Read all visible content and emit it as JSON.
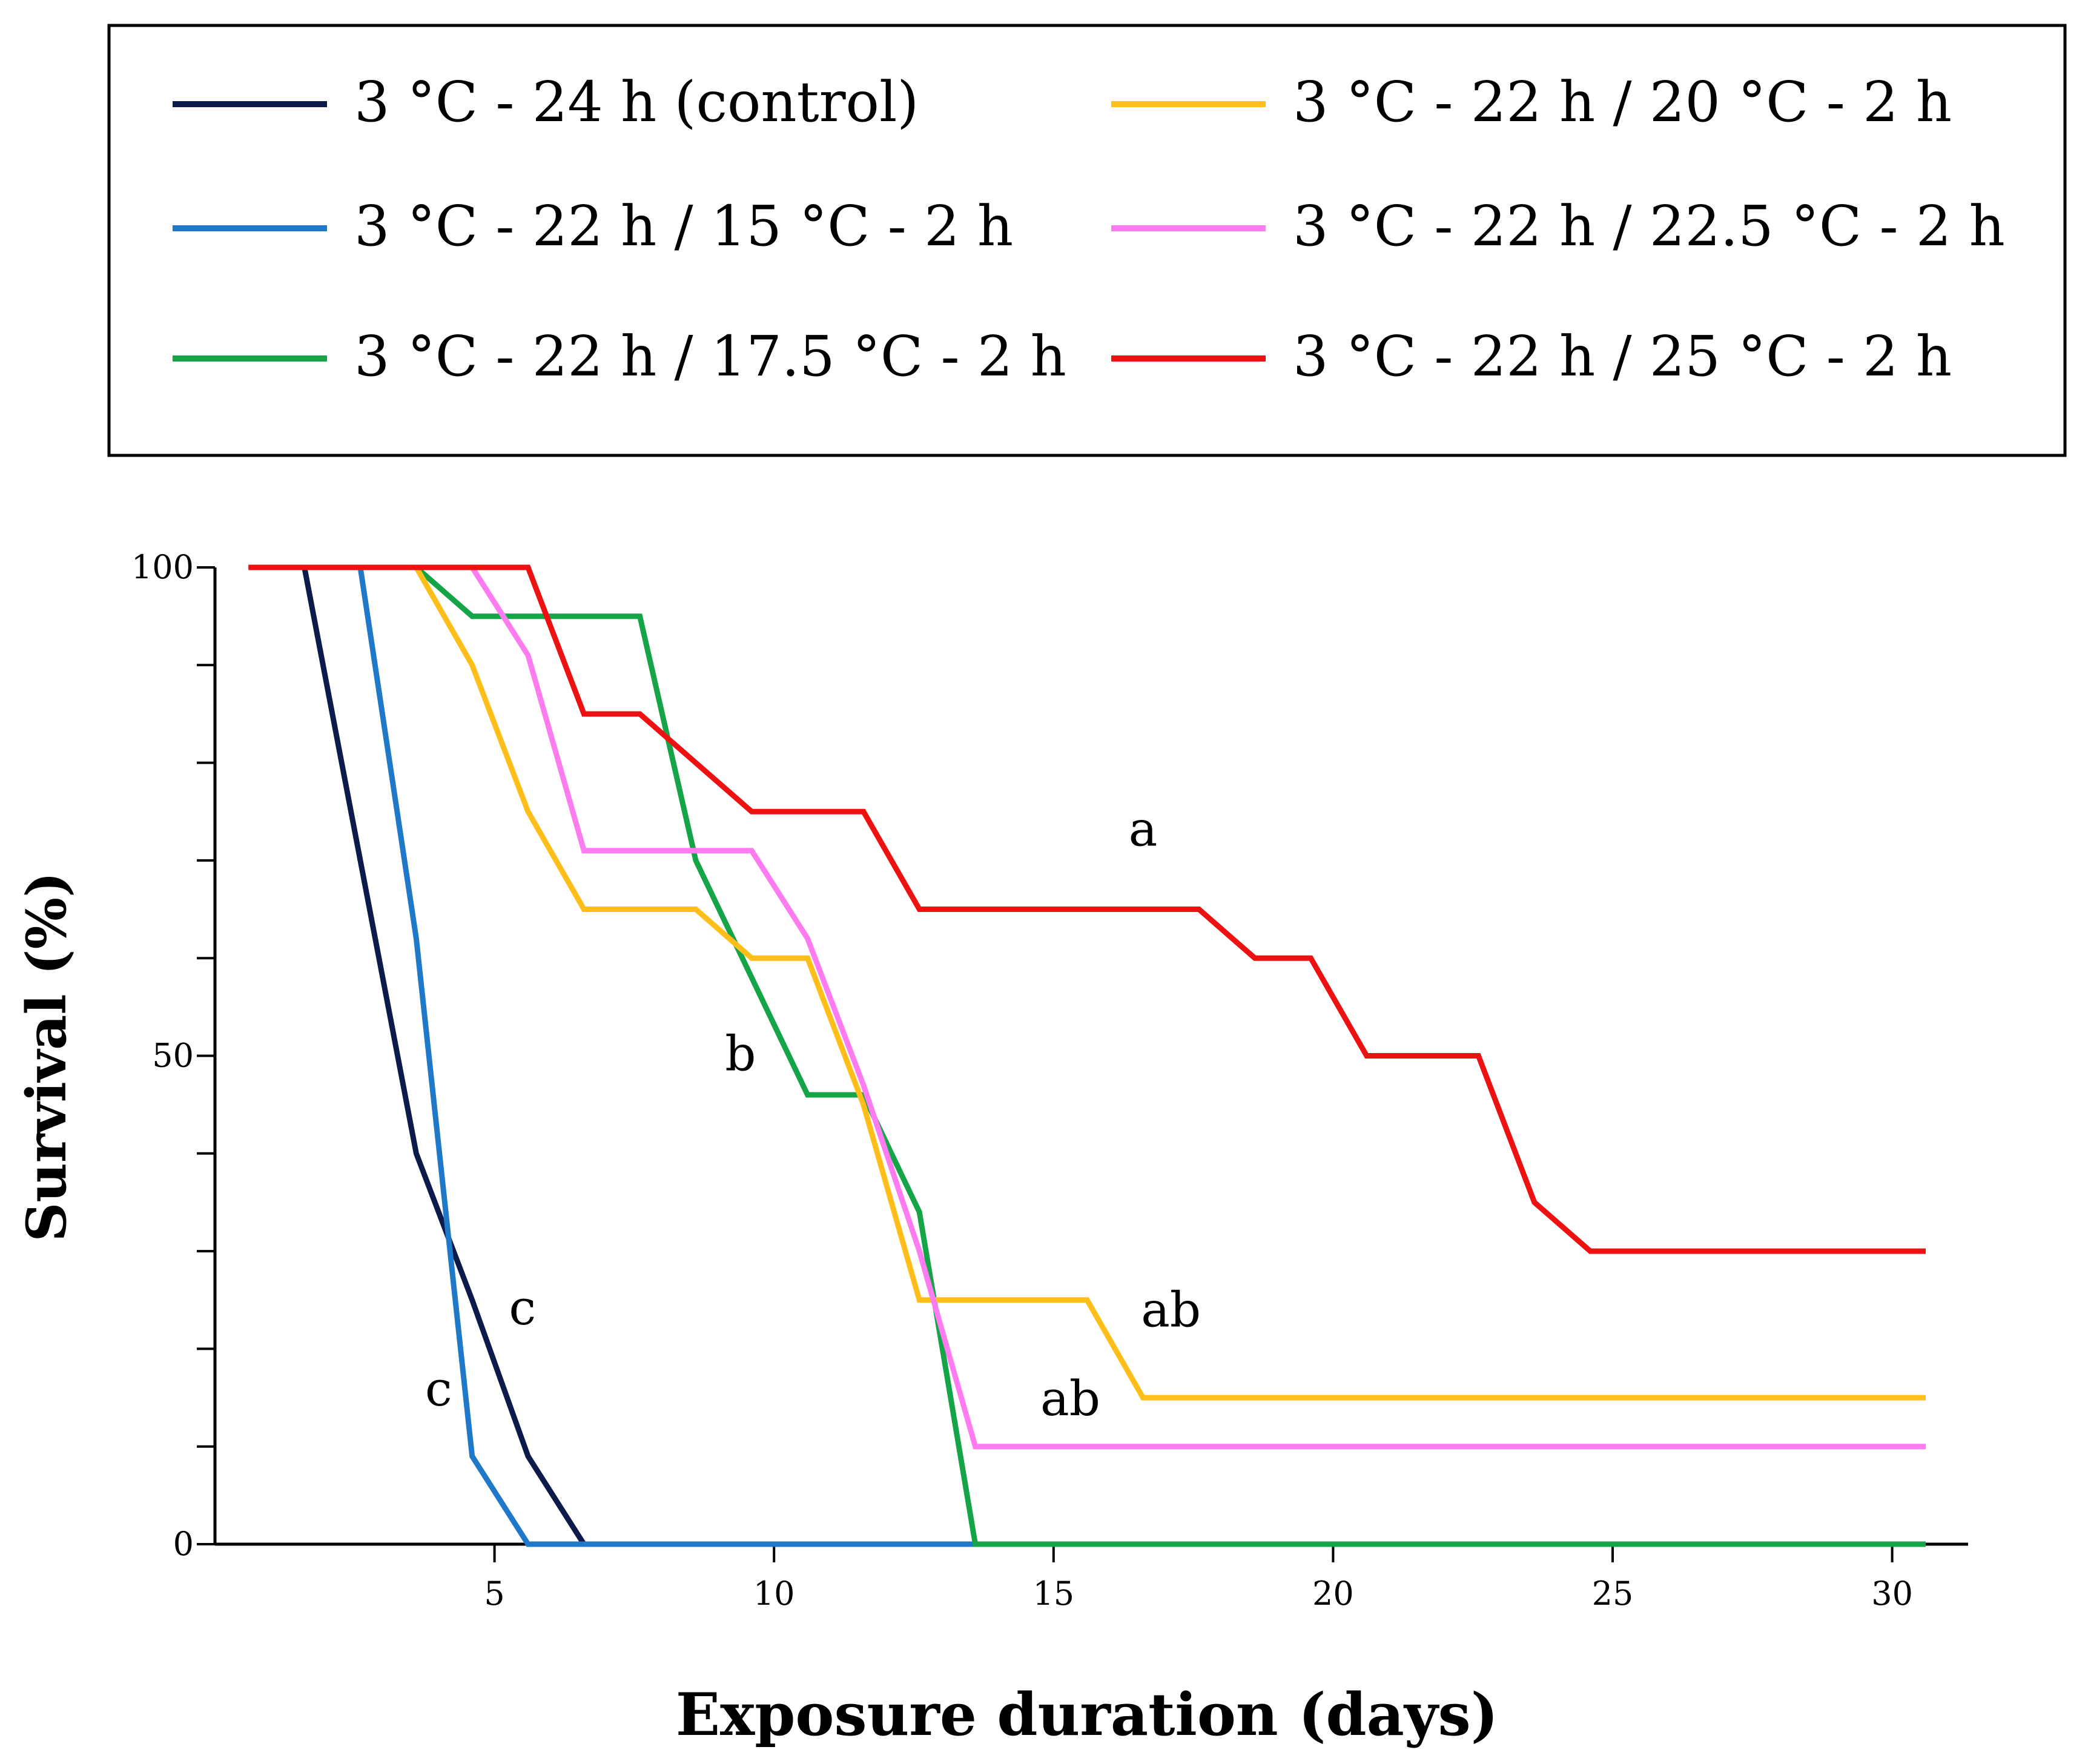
{
  "chart_data": {
    "type": "line",
    "title": "",
    "xlabel": "Exposure duration (days)",
    "ylabel": "Survival (%)",
    "xlim": [
      0,
      30.6
    ],
    "ylim": [
      0,
      100
    ],
    "xticks": [
      5,
      10,
      15,
      20,
      25,
      30
    ],
    "yticks": [
      0,
      50,
      100
    ],
    "yminor": [
      10,
      20,
      30,
      40,
      60,
      70,
      80,
      90
    ],
    "legend_position": "top",
    "series": [
      {
        "name": "3 °C - 24 h (control)",
        "color": "#0d1b4b",
        "points": [
          [
            0.6,
            100
          ],
          [
            1.6,
            100
          ],
          [
            2.6,
            70
          ],
          [
            3.6,
            40
          ],
          [
            4.6,
            25
          ],
          [
            5.6,
            9
          ],
          [
            6.6,
            0
          ],
          [
            30.6,
            0
          ]
        ]
      },
      {
        "name": "3 °C - 22 h / 15 °C - 2 h",
        "color": "#1f78c8",
        "points": [
          [
            0.6,
            100
          ],
          [
            2.6,
            100
          ],
          [
            3.6,
            62
          ],
          [
            4.6,
            9
          ],
          [
            5.6,
            0
          ],
          [
            30.6,
            0
          ]
        ]
      },
      {
        "name": "3 °C - 22 h / 17.5 °C - 2 h",
        "color": "#15a548",
        "points": [
          [
            0.6,
            100
          ],
          [
            3.6,
            100
          ],
          [
            4.6,
            95
          ],
          [
            7.6,
            95
          ],
          [
            8.6,
            70
          ],
          [
            10.6,
            46
          ],
          [
            11.6,
            46
          ],
          [
            12.6,
            34
          ],
          [
            13.6,
            0
          ],
          [
            30.6,
            0
          ]
        ]
      },
      {
        "name": "3 °C - 22 h / 20 °C - 2 h",
        "color": "#ffbe1a",
        "points": [
          [
            0.6,
            100
          ],
          [
            3.6,
            100
          ],
          [
            4.6,
            90
          ],
          [
            5.6,
            75
          ],
          [
            6.6,
            65
          ],
          [
            8.6,
            65
          ],
          [
            9.6,
            60
          ],
          [
            10.6,
            60
          ],
          [
            11.6,
            45
          ],
          [
            12.6,
            25
          ],
          [
            15.6,
            25
          ],
          [
            16.6,
            15
          ],
          [
            30.6,
            15
          ]
        ]
      },
      {
        "name": "3 °C - 22 h / 22.5 °C - 2 h",
        "color": "#ff7cf0",
        "points": [
          [
            0.6,
            100
          ],
          [
            4.6,
            100
          ],
          [
            5.6,
            91
          ],
          [
            6.6,
            71
          ],
          [
            9.6,
            71
          ],
          [
            10.6,
            62
          ],
          [
            11.6,
            47
          ],
          [
            12.6,
            30
          ],
          [
            13.6,
            10
          ],
          [
            30.6,
            10
          ]
        ]
      },
      {
        "name": "3 °C - 22 h / 25 °C - 2 h",
        "color": "#ee1111",
        "points": [
          [
            0.6,
            100
          ],
          [
            5.6,
            100
          ],
          [
            6.6,
            85
          ],
          [
            7.6,
            85
          ],
          [
            9.6,
            75
          ],
          [
            11.6,
            75
          ],
          [
            12.6,
            65
          ],
          [
            17.6,
            65
          ],
          [
            18.6,
            60
          ],
          [
            19.6,
            60
          ],
          [
            20.6,
            50
          ],
          [
            22.6,
            50
          ],
          [
            23.6,
            35
          ],
          [
            24.6,
            30
          ],
          [
            30.6,
            30
          ]
        ]
      }
    ],
    "annotations": [
      {
        "text": "a",
        "x": 16.6,
        "y": 71.5
      },
      {
        "text": "b",
        "x": 9.4,
        "y": 48.5
      },
      {
        "text": "c",
        "x": 5.5,
        "y": 22.5
      },
      {
        "text": "c",
        "x": 4.0,
        "y": 14.2
      },
      {
        "text": "ab",
        "x": 17.1,
        "y": 22.3
      },
      {
        "text": "ab",
        "x": 15.3,
        "y": 13.2
      }
    ]
  }
}
